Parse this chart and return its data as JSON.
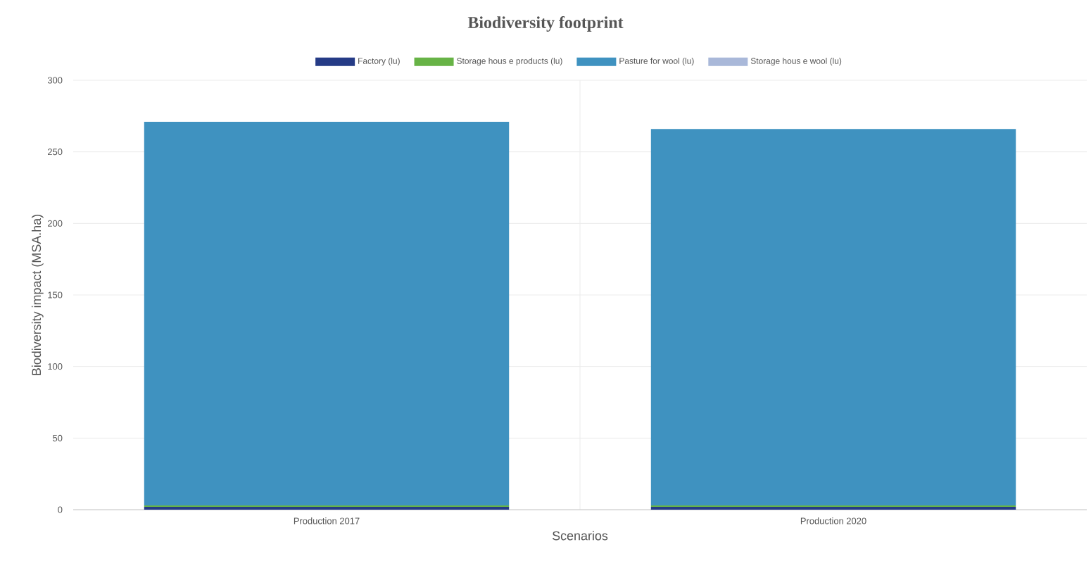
{
  "chart_data": {
    "type": "bar",
    "title": "Biodiversity footprint",
    "xlabel": "Scenarios",
    "ylabel": "Biodiversity impact (MSA.ha)",
    "categories": [
      "Production 2017",
      "Production 2020"
    ],
    "stacked": true,
    "series": [
      {
        "name": "Factory (lu)",
        "color": "#253b86",
        "values": [
          2,
          2
        ]
      },
      {
        "name": "Storage hous e products  (lu)",
        "color": "#67b346",
        "values": [
          1,
          1
        ]
      },
      {
        "name": "Pasture for wool (lu)",
        "color": "#3f92c0",
        "values": [
          268,
          263
        ]
      },
      {
        "name": "Storage hous e wool (lu)",
        "color": "#a9b8d9",
        "values": [
          null,
          null
        ]
      }
    ],
    "ylim": [
      0,
      300
    ],
    "yticks": [
      0,
      50,
      100,
      150,
      200,
      250,
      300
    ],
    "grid": true,
    "legend": "top"
  }
}
